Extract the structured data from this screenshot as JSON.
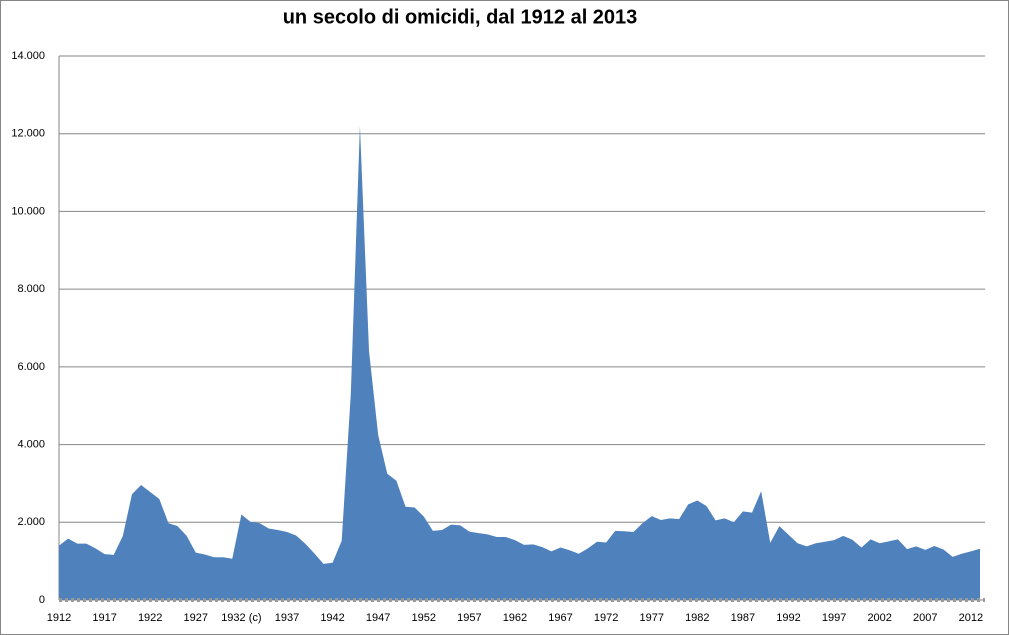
{
  "chart_data": {
    "type": "area",
    "title": "un secolo di omicidi, dal 1912 al 2013",
    "categories": [
      "1912",
      null,
      null,
      null,
      null,
      "1917",
      null,
      null,
      null,
      null,
      "1922",
      null,
      null,
      null,
      null,
      "1927",
      null,
      null,
      null,
      null,
      "1932 (c)",
      null,
      null,
      null,
      null,
      "1937",
      null,
      null,
      null,
      null,
      "1942",
      null,
      null,
      null,
      null,
      "1947",
      null,
      null,
      null,
      null,
      "1952",
      null,
      null,
      null,
      null,
      "1957",
      null,
      null,
      null,
      null,
      "1962",
      null,
      null,
      null,
      null,
      "1967",
      null,
      null,
      null,
      null,
      "1972",
      null,
      null,
      null,
      null,
      "1977",
      null,
      null,
      null,
      null,
      "1982",
      null,
      null,
      null,
      null,
      "1987",
      null,
      null,
      null,
      null,
      "1992",
      null,
      null,
      null,
      null,
      "1997",
      null,
      null,
      null,
      null,
      "2002",
      null,
      null,
      null,
      null,
      "2007",
      null,
      null,
      null,
      null,
      "2012",
      null
    ],
    "values": [
      1400,
      1580,
      1450,
      1450,
      1330,
      1180,
      1160,
      1650,
      2720,
      2960,
      2780,
      2600,
      1980,
      1900,
      1650,
      1220,
      1170,
      1100,
      1100,
      1060,
      2200,
      2010,
      1980,
      1840,
      1800,
      1750,
      1660,
      1450,
      1200,
      930,
      960,
      1520,
      5300,
      12200,
      6400,
      4250,
      3250,
      3070,
      2400,
      2380,
      2150,
      1780,
      1800,
      1940,
      1920,
      1760,
      1720,
      1690,
      1620,
      1620,
      1540,
      1420,
      1430,
      1360,
      1250,
      1350,
      1280,
      1190,
      1330,
      1500,
      1480,
      1780,
      1770,
      1750,
      1980,
      2160,
      2060,
      2100,
      2080,
      2460,
      2560,
      2420,
      2050,
      2100,
      2000,
      2280,
      2250,
      2800,
      1470,
      1900,
      1680,
      1460,
      1380,
      1460,
      1500,
      1540,
      1650,
      1550,
      1350,
      1560,
      1460,
      1510,
      1560,
      1310,
      1380,
      1290,
      1390,
      1300,
      1110,
      1190,
      1250,
      1320
    ],
    "color": "#4f81bd",
    "ylim": [
      0,
      14000
    ],
    "yticks": [
      0,
      {
        "value": 2000,
        "label": "2.000"
      },
      {
        "value": 4000,
        "label": "4.000"
      },
      {
        "value": 6000,
        "label": "6.000"
      },
      {
        "value": 8000,
        "label": "8.000"
      },
      {
        "value": 10000,
        "label": "10.000"
      },
      {
        "value": 12000,
        "label": "12.000"
      },
      {
        "value": 14000,
        "label": "14.000"
      }
    ],
    "grid": true
  }
}
